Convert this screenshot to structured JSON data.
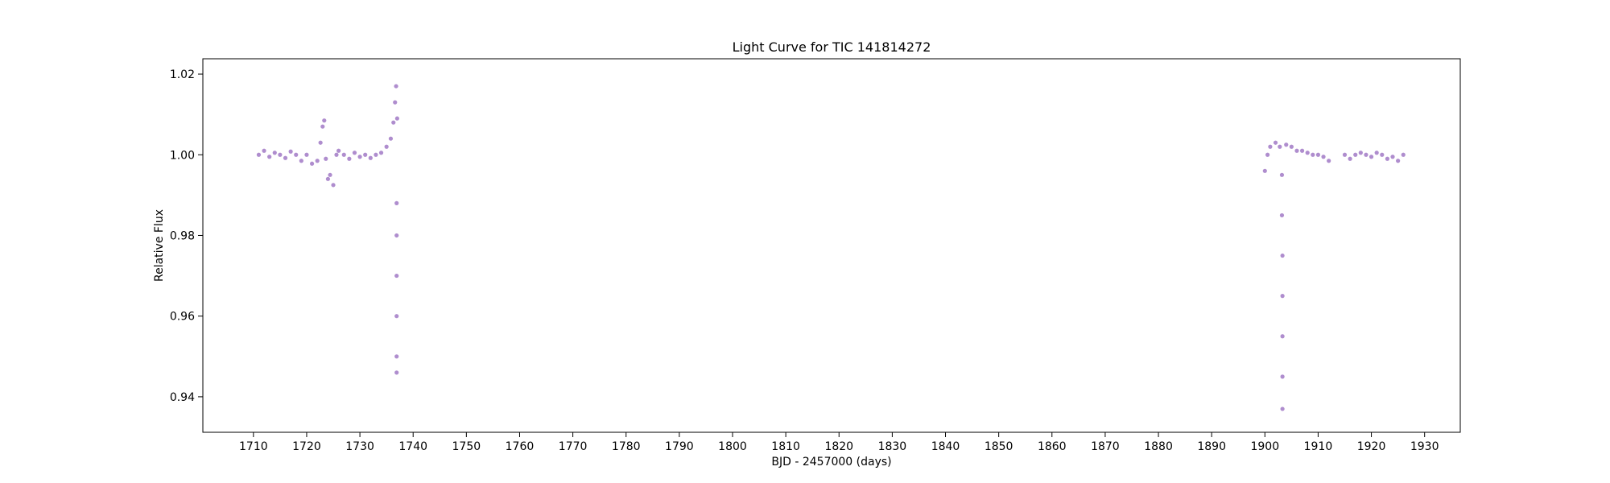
{
  "chart_data": {
    "type": "scatter",
    "title": "Light Curve for TIC 141814272",
    "xlabel": "BJD - 2457000 (days)",
    "ylabel": "Relative Flux",
    "xlim": [
      1700.5,
      1936.7
    ],
    "ylim": [
      0.9312,
      1.0238
    ],
    "xticks": [
      1710,
      1720,
      1730,
      1740,
      1750,
      1760,
      1770,
      1780,
      1790,
      1800,
      1810,
      1820,
      1830,
      1840,
      1850,
      1860,
      1870,
      1880,
      1890,
      1900,
      1910,
      1920,
      1930
    ],
    "xtick_labels": [
      "1710",
      "1720",
      "1730",
      "1740",
      "1750",
      "1760",
      "1770",
      "1780",
      "1790",
      "1800",
      "1810",
      "1820",
      "1830",
      "1840",
      "1850",
      "1860",
      "1870",
      "1880",
      "1890",
      "1900",
      "1910",
      "1920",
      "1930"
    ],
    "yticks": [
      0.94,
      0.96,
      0.98,
      1.0,
      1.02
    ],
    "ytick_labels": [
      "0.94",
      "0.96",
      "0.98",
      "1.00",
      "1.02"
    ],
    "grid": false,
    "legend": "none",
    "marker_color": "#9467bd",
    "series": [
      {
        "points": [
          [
            1711.0,
            1.0
          ],
          [
            1712.0,
            1.001
          ],
          [
            1713.0,
            0.9995
          ],
          [
            1714.0,
            1.0005
          ],
          [
            1715.0,
            1.0
          ],
          [
            1716.0,
            0.9992
          ],
          [
            1717.0,
            1.0008
          ],
          [
            1718.0,
            1.0
          ],
          [
            1719.0,
            0.9985
          ],
          [
            1720.0,
            1.0
          ],
          [
            1721.0,
            0.9978
          ],
          [
            1722.0,
            0.9985
          ],
          [
            1722.6,
            1.003
          ],
          [
            1723.0,
            1.007
          ],
          [
            1723.3,
            1.0085
          ],
          [
            1723.6,
            0.999
          ],
          [
            1724.0,
            0.994
          ],
          [
            1724.4,
            0.995
          ],
          [
            1725.0,
            0.9925
          ],
          [
            1725.6,
            1.0
          ],
          [
            1726.0,
            1.001
          ],
          [
            1727.0,
            1.0
          ],
          [
            1728.0,
            0.999
          ],
          [
            1729.0,
            1.0005
          ],
          [
            1730.0,
            0.9995
          ],
          [
            1731.0,
            1.0
          ],
          [
            1732.0,
            0.9992
          ],
          [
            1733.0,
            1.0
          ],
          [
            1734.0,
            1.0005
          ],
          [
            1735.0,
            1.002
          ],
          [
            1735.8,
            1.004
          ],
          [
            1736.3,
            1.008
          ],
          [
            1736.6,
            1.013
          ],
          [
            1736.8,
            1.017
          ],
          [
            1737.0,
            1.009
          ],
          [
            1736.9,
            0.988
          ],
          [
            1736.9,
            0.98
          ],
          [
            1736.9,
            0.97
          ],
          [
            1736.9,
            0.96
          ],
          [
            1736.9,
            0.95
          ],
          [
            1736.9,
            0.946
          ],
          [
            1900.0,
            0.996
          ],
          [
            1900.5,
            1.0
          ],
          [
            1901.0,
            1.002
          ],
          [
            1902.0,
            1.003
          ],
          [
            1902.8,
            1.002
          ],
          [
            1903.2,
            0.995
          ],
          [
            1903.2,
            0.985
          ],
          [
            1903.3,
            0.975
          ],
          [
            1903.3,
            0.965
          ],
          [
            1903.3,
            0.955
          ],
          [
            1903.3,
            0.945
          ],
          [
            1903.3,
            0.937
          ],
          [
            1904.0,
            1.0025
          ],
          [
            1905.0,
            1.002
          ],
          [
            1906.0,
            1.001
          ],
          [
            1907.0,
            1.001
          ],
          [
            1908.0,
            1.0005
          ],
          [
            1909.0,
            1.0
          ],
          [
            1910.0,
            1.0
          ],
          [
            1911.0,
            0.9995
          ],
          [
            1912.0,
            0.9985
          ],
          [
            1915.0,
            1.0
          ],
          [
            1916.0,
            0.999
          ],
          [
            1917.0,
            1.0
          ],
          [
            1918.0,
            1.0005
          ],
          [
            1919.0,
            1.0
          ],
          [
            1920.0,
            0.9995
          ],
          [
            1921.0,
            1.0005
          ],
          [
            1922.0,
            1.0
          ],
          [
            1923.0,
            0.999
          ],
          [
            1924.0,
            0.9995
          ],
          [
            1925.0,
            0.9985
          ],
          [
            1926.0,
            1.0
          ]
        ]
      }
    ]
  }
}
